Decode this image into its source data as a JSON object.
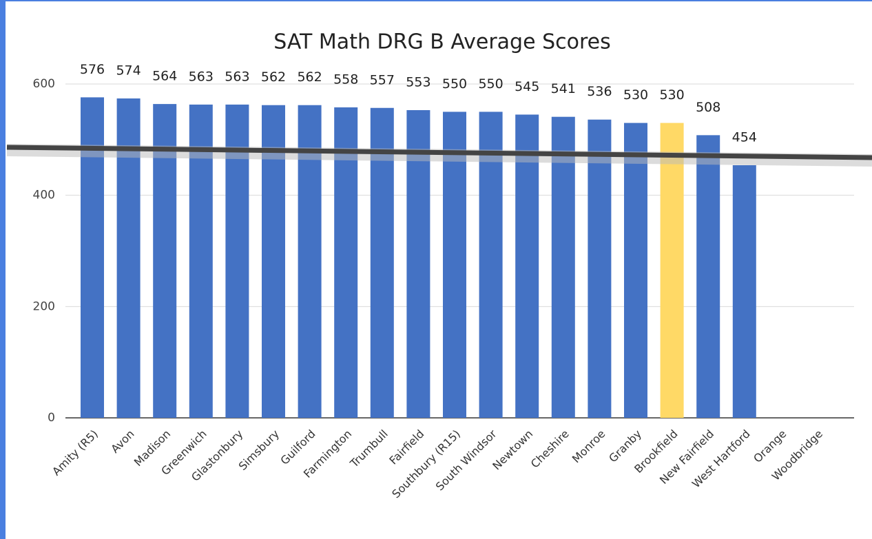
{
  "chart_data": {
    "type": "bar",
    "title": "SAT Math DRG B Average Scores",
    "categories": [
      "Amity (R5)",
      "Avon",
      "Madison",
      "Greenwich",
      "Glastonbury",
      "Simsbury",
      "Guilford",
      "Farmington",
      "Trumbull",
      "Fairfield",
      "Southbury (R15)",
      "South Windsor",
      "Newtown",
      "Cheshire",
      "Monroe",
      "Granby",
      "Brookfield",
      "New Fairfield",
      "West Hartford",
      "Orange",
      "Woodbridge"
    ],
    "values": [
      576,
      574,
      564,
      563,
      563,
      562,
      562,
      558,
      557,
      553,
      550,
      550,
      545,
      541,
      536,
      530,
      530,
      508,
      454,
      null,
      null
    ],
    "colors": [
      "#4472c4",
      "#4472c4",
      "#4472c4",
      "#4472c4",
      "#4472c4",
      "#4472c4",
      "#4472c4",
      "#4472c4",
      "#4472c4",
      "#4472c4",
      "#4472c4",
      "#4472c4",
      "#4472c4",
      "#4472c4",
      "#4472c4",
      "#4472c4",
      "#ffd966",
      "#4472c4",
      "#4472c4",
      "#4472c4",
      "#4472c4"
    ],
    "ylim": [
      0,
      600
    ],
    "yticks": [
      0,
      200,
      400,
      600
    ],
    "grid": true
  }
}
